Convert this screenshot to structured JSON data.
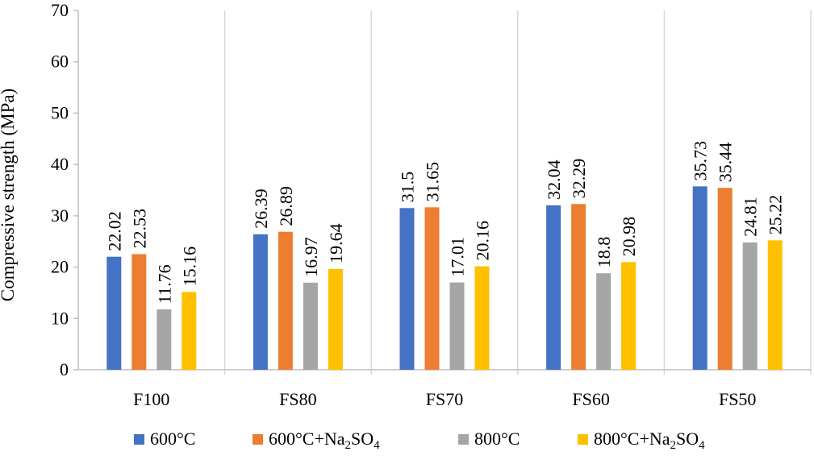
{
  "chart_data": {
    "type": "bar",
    "title": "",
    "xlabel": "",
    "ylabel": "Compressive strength (MPa)",
    "ylim": [
      0,
      70
    ],
    "yticks": [
      0,
      10,
      20,
      30,
      40,
      50,
      60,
      70
    ],
    "categories": [
      "F100",
      "FS80",
      "FS70",
      "FS60",
      "FS50"
    ],
    "series": [
      {
        "name": "600°C",
        "legend": {
          "a": "600°C",
          "sub1": "",
          "b": "",
          "sub2": "",
          "c": ""
        },
        "color": "#4472C4",
        "values": [
          22.02,
          26.39,
          31.5,
          32.04,
          35.73
        ],
        "labels": [
          "22.02",
          "26.39",
          "31.5",
          "32.04",
          "35.73"
        ]
      },
      {
        "name": "600°C+Na2SO4",
        "legend": {
          "a": "600°C+Na",
          "sub1": "2",
          "b": "SO",
          "sub2": "4",
          "c": ""
        },
        "color": "#ED7D31",
        "values": [
          22.53,
          26.89,
          31.65,
          32.29,
          35.44
        ],
        "labels": [
          "22.53",
          "26.89",
          "31.65",
          "32.29",
          "35.44"
        ]
      },
      {
        "name": "800°C",
        "legend": {
          "a": "800°C",
          "sub1": "",
          "b": "",
          "sub2": "",
          "c": ""
        },
        "color": "#A5A5A5",
        "values": [
          11.76,
          16.97,
          17.01,
          18.8,
          24.81
        ],
        "labels": [
          "11.76",
          "16.97",
          "17.01",
          "18.8",
          "24.81"
        ]
      },
      {
        "name": "800°C+Na2SO4",
        "legend": {
          "a": "800°C+Na",
          "sub1": "2",
          "b": "SO",
          "sub2": "4",
          "c": ""
        },
        "color": "#FFC000",
        "values": [
          15.16,
          19.64,
          20.16,
          20.98,
          25.22
        ],
        "labels": [
          "15.16",
          "19.64",
          "20.16",
          "20.98",
          "25.22"
        ]
      }
    ],
    "grid": {
      "vertical_separators": true,
      "horizontal": false
    },
    "gridline_color": "#D9D9D9",
    "axis_color": "#BFBFBF",
    "legend_position": "bottom"
  }
}
